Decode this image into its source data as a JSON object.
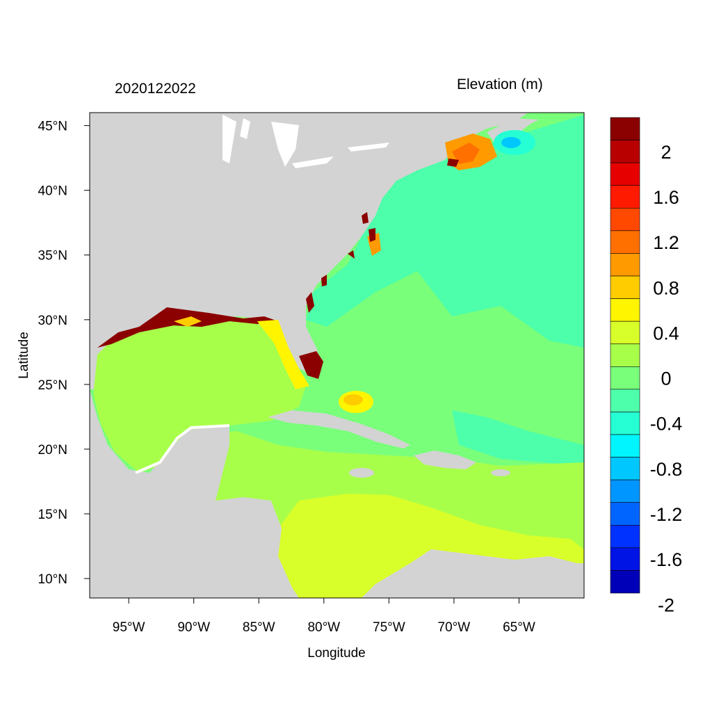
{
  "header": {
    "timestamp": "2020122022",
    "variable_title": "Elevation (m)"
  },
  "axes": {
    "xlabel": "Longitude",
    "ylabel": "Latitude",
    "x_ticks": [
      "95°W",
      "90°W",
      "85°W",
      "80°W",
      "75°W",
      "70°W",
      "65°W"
    ],
    "y_ticks": [
      "45°N",
      "40°N",
      "35°N",
      "30°N",
      "25°N",
      "20°N",
      "15°N",
      "10°N"
    ],
    "lon_range": [
      -98,
      -60
    ],
    "lat_range": [
      8.5,
      46
    ]
  },
  "colorbar": {
    "label_values": [
      "2",
      "1.6",
      "1.2",
      "0.8",
      "0.4",
      "0",
      "-0.4",
      "-0.8",
      "-1.2",
      "-1.6",
      "-2"
    ],
    "levels_top_to_bottom": [
      "#8b0000",
      "#b80000",
      "#e60000",
      "#ff1a00",
      "#ff4800",
      "#ff7000",
      "#ff9a00",
      "#ffcc00",
      "#fff500",
      "#d9ff2a",
      "#a8ff4a",
      "#7aff7a",
      "#4dffaa",
      "#26ffd4",
      "#00f5ff",
      "#00c8ff",
      "#0096ff",
      "#0064ff",
      "#0032ff",
      "#0014e6",
      "#0000b8"
    ]
  },
  "colors": {
    "land": "#d3d3d3",
    "ocean_atlantic": "#7aff7a",
    "ocean_cyan": "#4dffaa",
    "gulf": "#a8ff4a",
    "caribbean_south": "#d9ff2a",
    "surge_high": "#8b0000",
    "surge_mid": "#ff9a00"
  }
}
